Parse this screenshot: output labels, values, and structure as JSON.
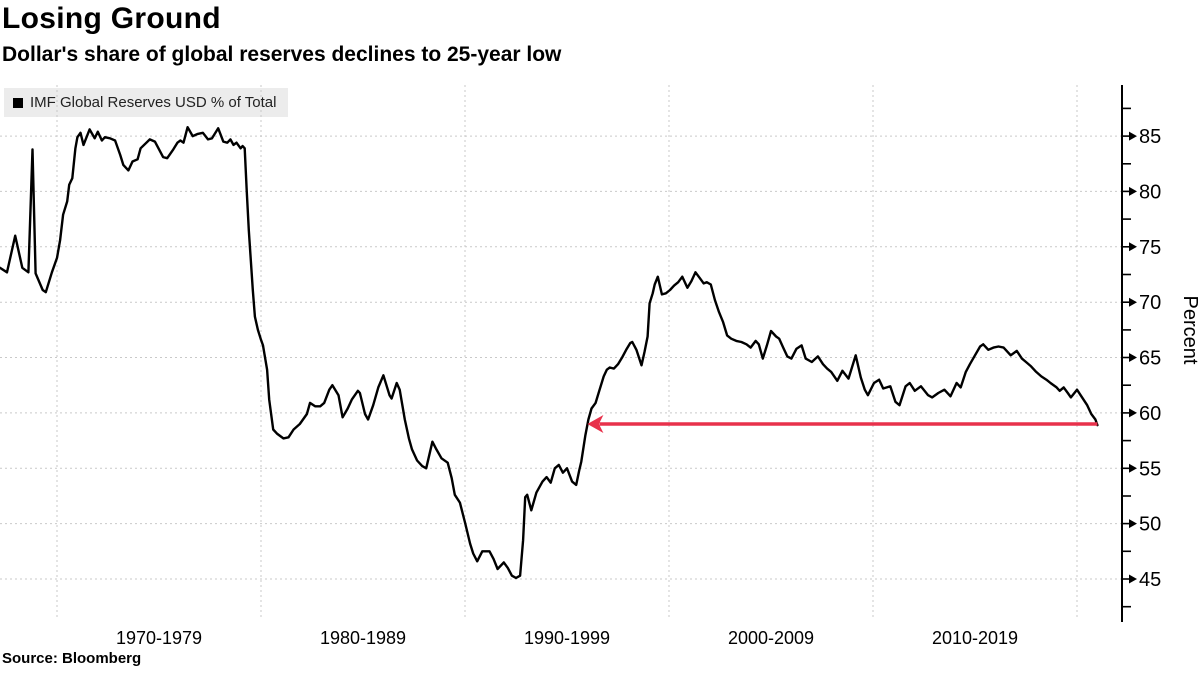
{
  "header": {
    "title": "Losing Ground",
    "subtitle": "Dollar's share of global reserves declines to 25-year low"
  },
  "legend": {
    "swatch_color": "#000000",
    "label": "IMF Global Reserves USD % of Total"
  },
  "source": {
    "text": "Source: Bloomberg"
  },
  "chart_data": {
    "type": "line",
    "title": "Losing Ground",
    "subtitle": "Dollar's share of global reserves declines to 25-year low",
    "grid": {
      "show": true,
      "color": "#c9c9c9",
      "style": "dashed"
    },
    "x_axis": {
      "labels": [
        "1970-1979",
        "1980-1989",
        "1990-1999",
        "2000-2009",
        "2010-2019"
      ],
      "label_center_years": [
        1975,
        1985,
        1995,
        2005,
        2015
      ],
      "gridline_years": [
        1970,
        1980,
        1990,
        2000,
        2010,
        2020
      ],
      "domain": [
        1967.2,
        2022.2
      ]
    },
    "y_axis": {
      "title": "Percent",
      "side": "right",
      "ticks": [
        45,
        50,
        55,
        60,
        65,
        70,
        75,
        80,
        85
      ],
      "minor_ticks": [
        42.5,
        47.5,
        52.5,
        57.5,
        62.5,
        67.5,
        72.5,
        77.5,
        82.5,
        87.5
      ],
      "domain": [
        41.1,
        89.6
      ]
    },
    "annotation": {
      "type": "arrow",
      "direction": "left",
      "value": 59.0,
      "to_year": 1996.0,
      "from_year": 2021.0,
      "color": "#e8314b"
    },
    "series": [
      {
        "name": "IMF Global Reserves USD % of Total",
        "color": "#000000",
        "points": [
          [
            1967.2,
            73.1
          ],
          [
            1967.55,
            72.7
          ],
          [
            1967.95,
            76
          ],
          [
            1968.3,
            73.1
          ],
          [
            1968.6,
            72.7
          ],
          [
            1968.8,
            83.8
          ],
          [
            1968.95,
            72.6
          ],
          [
            1969.3,
            71.1
          ],
          [
            1969.45,
            70.9
          ],
          [
            1969.75,
            72.7
          ],
          [
            1970,
            74
          ],
          [
            1970.15,
            75.6
          ],
          [
            1970.3,
            77.9
          ],
          [
            1970.5,
            79.1
          ],
          [
            1970.6,
            80.6
          ],
          [
            1970.75,
            81.2
          ],
          [
            1970.9,
            83.9
          ],
          [
            1971,
            84.9
          ],
          [
            1971.15,
            85.3
          ],
          [
            1971.3,
            84.2
          ],
          [
            1971.6,
            85.6
          ],
          [
            1971.85,
            84.8
          ],
          [
            1972,
            85.4
          ],
          [
            1972.2,
            84.6
          ],
          [
            1972.35,
            84.9
          ],
          [
            1972.6,
            84.8
          ],
          [
            1972.85,
            84.6
          ],
          [
            1973.1,
            83.3
          ],
          [
            1973.25,
            82.4
          ],
          [
            1973.5,
            81.9
          ],
          [
            1973.7,
            82.7
          ],
          [
            1973.95,
            82.9
          ],
          [
            1974.1,
            83.9
          ],
          [
            1974.55,
            84.7
          ],
          [
            1974.8,
            84.5
          ],
          [
            1975.2,
            83.1
          ],
          [
            1975.4,
            83
          ],
          [
            1975.7,
            83.8
          ],
          [
            1975.9,
            84.4
          ],
          [
            1976.05,
            84.6
          ],
          [
            1976.2,
            84.4
          ],
          [
            1976.4,
            85.8
          ],
          [
            1976.65,
            85
          ],
          [
            1976.9,
            85.2
          ],
          [
            1977.15,
            85.3
          ],
          [
            1977.4,
            84.7
          ],
          [
            1977.6,
            84.8
          ],
          [
            1977.9,
            85.7
          ],
          [
            1978.15,
            84.5
          ],
          [
            1978.35,
            84.4
          ],
          [
            1978.5,
            84.7
          ],
          [
            1978.65,
            84.2
          ],
          [
            1978.8,
            84.4
          ],
          [
            1979,
            83.9
          ],
          [
            1979.1,
            84.1
          ],
          [
            1979.2,
            83.9
          ],
          [
            1979.3,
            80.1
          ],
          [
            1979.4,
            76.5
          ],
          [
            1979.5,
            73.8
          ],
          [
            1979.6,
            71.1
          ],
          [
            1979.7,
            68.7
          ],
          [
            1979.85,
            67.5
          ],
          [
            1980,
            66.6
          ],
          [
            1980.1,
            66.1
          ],
          [
            1980.3,
            63.9
          ],
          [
            1980.4,
            61.2
          ],
          [
            1980.6,
            58.5
          ],
          [
            1980.8,
            58.1
          ],
          [
            1981.1,
            57.7
          ],
          [
            1981.35,
            57.8
          ],
          [
            1981.6,
            58.5
          ],
          [
            1981.9,
            59
          ],
          [
            1982.25,
            59.9
          ],
          [
            1982.4,
            60.9
          ],
          [
            1982.65,
            60.6
          ],
          [
            1982.9,
            60.6
          ],
          [
            1983.1,
            60.9
          ],
          [
            1983.35,
            62.1
          ],
          [
            1983.5,
            62.5
          ],
          [
            1983.8,
            61.6
          ],
          [
            1984,
            59.6
          ],
          [
            1984.25,
            60.4
          ],
          [
            1984.45,
            61.2
          ],
          [
            1984.75,
            62
          ],
          [
            1984.85,
            61.8
          ],
          [
            1985.1,
            59.9
          ],
          [
            1985.25,
            59.4
          ],
          [
            1985.5,
            60.7
          ],
          [
            1985.75,
            62.3
          ],
          [
            1986,
            63.4
          ],
          [
            1986.3,
            61.6
          ],
          [
            1986.4,
            61.3
          ],
          [
            1986.65,
            62.7
          ],
          [
            1986.8,
            62.1
          ],
          [
            1987.05,
            59.4
          ],
          [
            1987.25,
            57.7
          ],
          [
            1987.4,
            56.7
          ],
          [
            1987.65,
            55.7
          ],
          [
            1987.9,
            55.2
          ],
          [
            1988.1,
            55
          ],
          [
            1988.4,
            57.4
          ],
          [
            1988.6,
            56.7
          ],
          [
            1988.85,
            55.9
          ],
          [
            1989.15,
            55.5
          ],
          [
            1989.35,
            54.1
          ],
          [
            1989.5,
            52.6
          ],
          [
            1989.75,
            51.9
          ],
          [
            1990,
            50.1
          ],
          [
            1990.25,
            48.2
          ],
          [
            1990.4,
            47.3
          ],
          [
            1990.6,
            46.6
          ],
          [
            1990.85,
            47.5
          ],
          [
            1991.2,
            47.5
          ],
          [
            1991.4,
            46.8
          ],
          [
            1991.6,
            45.9
          ],
          [
            1991.9,
            46.5
          ],
          [
            1992.1,
            46
          ],
          [
            1992.3,
            45.3
          ],
          [
            1992.5,
            45.1
          ],
          [
            1992.7,
            45.3
          ],
          [
            1992.85,
            48.5
          ],
          [
            1992.95,
            52.4
          ],
          [
            1993.05,
            52.6
          ],
          [
            1993.25,
            51.2
          ],
          [
            1993.5,
            52.8
          ],
          [
            1993.8,
            53.8
          ],
          [
            1994,
            54.2
          ],
          [
            1994.2,
            53.7
          ],
          [
            1994.4,
            55
          ],
          [
            1994.6,
            55.3
          ],
          [
            1994.8,
            54.6
          ],
          [
            1995,
            55
          ],
          [
            1995.25,
            53.8
          ],
          [
            1995.45,
            53.5
          ],
          [
            1995.6,
            54.8
          ],
          [
            1995.7,
            55.6
          ],
          [
            1995.9,
            58
          ],
          [
            1996.05,
            59.4
          ],
          [
            1996.2,
            60.4
          ],
          [
            1996.4,
            60.9
          ],
          [
            1996.6,
            62.1
          ],
          [
            1996.8,
            63.3
          ],
          [
            1996.95,
            63.9
          ],
          [
            1997.1,
            64.1
          ],
          [
            1997.3,
            64
          ],
          [
            1997.5,
            64.4
          ],
          [
            1997.7,
            65
          ],
          [
            1997.9,
            65.7
          ],
          [
            1998.1,
            66.3
          ],
          [
            1998.2,
            66.4
          ],
          [
            1998.4,
            65.7
          ],
          [
            1998.65,
            64.3
          ],
          [
            1998.8,
            65.5
          ],
          [
            1998.95,
            66.9
          ],
          [
            1999.05,
            69.9
          ],
          [
            1999.2,
            70.8
          ],
          [
            1999.3,
            71.6
          ],
          [
            1999.45,
            72.3
          ],
          [
            1999.65,
            70.7
          ],
          [
            1999.85,
            70.8
          ],
          [
            2000.05,
            71.1
          ],
          [
            2000.25,
            71.5
          ],
          [
            2000.45,
            71.8
          ],
          [
            2000.65,
            72.3
          ],
          [
            2000.9,
            71.3
          ],
          [
            2001.1,
            71.9
          ],
          [
            2001.3,
            72.7
          ],
          [
            2001.5,
            72.2
          ],
          [
            2001.7,
            71.7
          ],
          [
            2001.85,
            71.8
          ],
          [
            2002.05,
            71.6
          ],
          [
            2002.25,
            70.2
          ],
          [
            2002.45,
            69.1
          ],
          [
            2002.65,
            68.2
          ],
          [
            2002.85,
            67
          ],
          [
            2003.05,
            66.7
          ],
          [
            2003.3,
            66.5
          ],
          [
            2003.55,
            66.4
          ],
          [
            2003.8,
            66.2
          ],
          [
            2004,
            65.9
          ],
          [
            2004.25,
            66.5
          ],
          [
            2004.4,
            66.2
          ],
          [
            2004.6,
            64.9
          ],
          [
            2004.8,
            66.1
          ],
          [
            2005,
            67.4
          ],
          [
            2005.25,
            66.9
          ],
          [
            2005.4,
            66.7
          ],
          [
            2005.6,
            65.9
          ],
          [
            2005.8,
            65.1
          ],
          [
            2006,
            64.9
          ],
          [
            2006.25,
            65.8
          ],
          [
            2006.5,
            66.1
          ],
          [
            2006.7,
            64.9
          ],
          [
            2007,
            64.6
          ],
          [
            2007.3,
            65.1
          ],
          [
            2007.55,
            64.4
          ],
          [
            2007.75,
            64
          ],
          [
            2007.95,
            63.7
          ],
          [
            2008.25,
            62.9
          ],
          [
            2008.5,
            63.8
          ],
          [
            2008.8,
            63.1
          ],
          [
            2009.15,
            65.2
          ],
          [
            2009.4,
            63.2
          ],
          [
            2009.6,
            62.1
          ],
          [
            2009.75,
            61.6
          ],
          [
            2010.05,
            62.7
          ],
          [
            2010.3,
            63
          ],
          [
            2010.5,
            62.2
          ],
          [
            2010.85,
            62.4
          ],
          [
            2011.1,
            61
          ],
          [
            2011.3,
            60.7
          ],
          [
            2011.6,
            62.4
          ],
          [
            2011.8,
            62.7
          ],
          [
            2012.05,
            62
          ],
          [
            2012.35,
            62.4
          ],
          [
            2012.7,
            61.6
          ],
          [
            2012.9,
            61.4
          ],
          [
            2013.2,
            61.8
          ],
          [
            2013.5,
            62.1
          ],
          [
            2013.8,
            61.5
          ],
          [
            2014.1,
            62.7
          ],
          [
            2014.3,
            62.3
          ],
          [
            2014.55,
            63.7
          ],
          [
            2014.75,
            64.4
          ],
          [
            2015,
            65.2
          ],
          [
            2015.25,
            66
          ],
          [
            2015.4,
            66.2
          ],
          [
            2015.65,
            65.7
          ],
          [
            2015.9,
            65.9
          ],
          [
            2016.15,
            66
          ],
          [
            2016.4,
            65.9
          ],
          [
            2016.75,
            65.2
          ],
          [
            2017.05,
            65.6
          ],
          [
            2017.3,
            64.9
          ],
          [
            2017.5,
            64.6
          ],
          [
            2017.75,
            64.2
          ],
          [
            2018,
            63.7
          ],
          [
            2018.25,
            63.3
          ],
          [
            2018.5,
            63
          ],
          [
            2018.7,
            62.7
          ],
          [
            2019,
            62.3
          ],
          [
            2019.15,
            62
          ],
          [
            2019.35,
            62.3
          ],
          [
            2019.55,
            61.8
          ],
          [
            2019.7,
            61.4
          ],
          [
            2020,
            62.1
          ],
          [
            2020.25,
            61.4
          ],
          [
            2020.5,
            60.7
          ],
          [
            2020.7,
            59.9
          ],
          [
            2020.9,
            59.4
          ],
          [
            2021,
            58.9
          ]
        ]
      }
    ]
  }
}
